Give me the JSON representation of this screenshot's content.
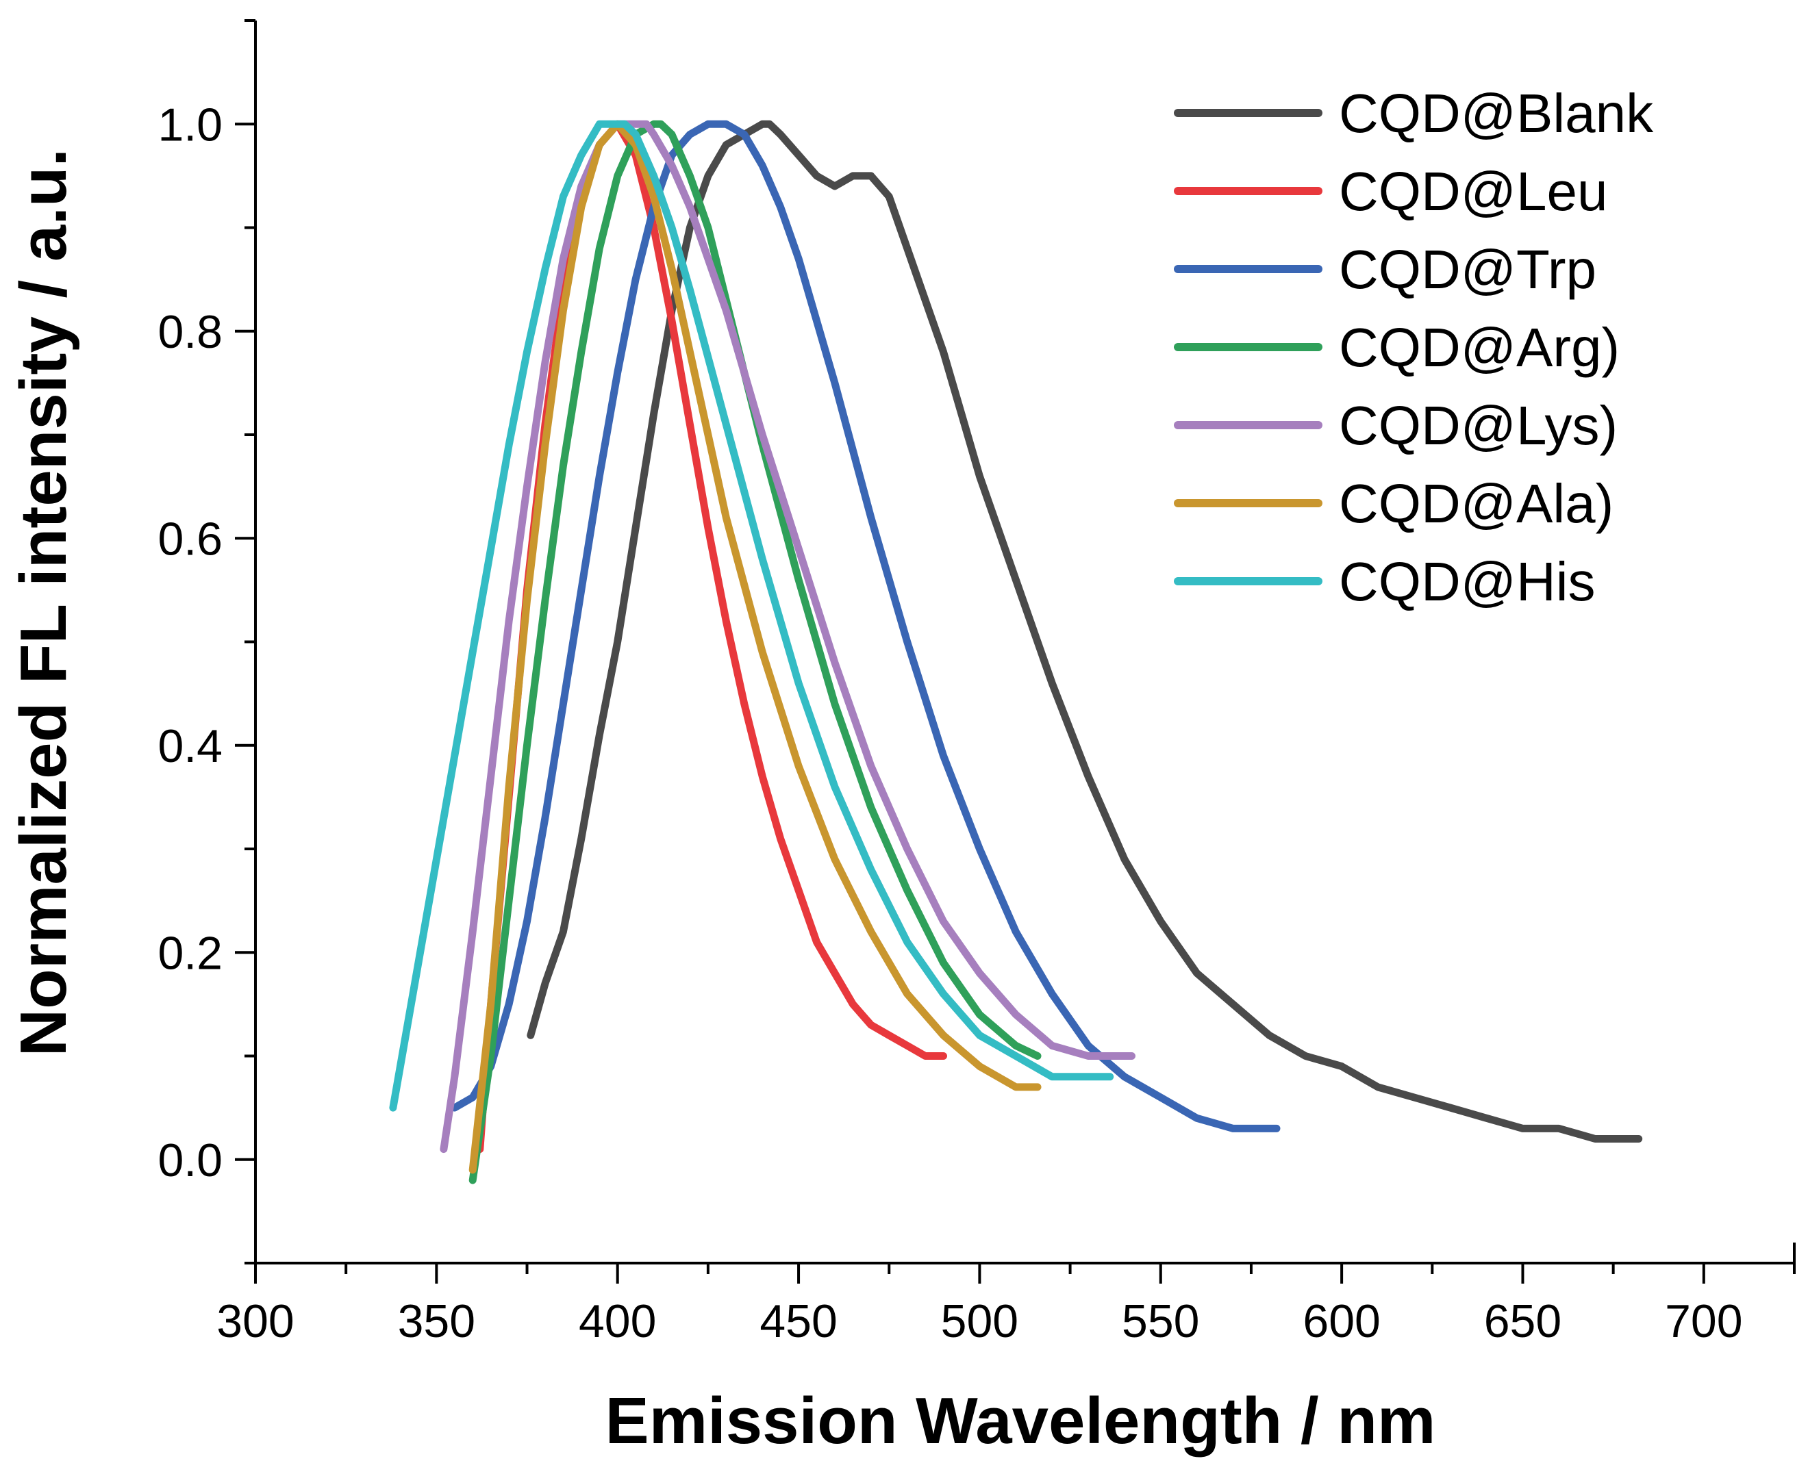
{
  "chart_data": {
    "type": "line",
    "title": "",
    "xlabel": "Emission Wavelength / nm",
    "ylabel": "Normalized FL intensity / a.u.",
    "xlim": [
      300,
      725
    ],
    "ylim": [
      -0.1,
      1.1
    ],
    "xticks": [
      300,
      350,
      400,
      450,
      500,
      550,
      600,
      650,
      700
    ],
    "xtick_labels": [
      "300",
      "350",
      "400",
      "450",
      "500",
      "550",
      "600",
      "650",
      "700"
    ],
    "yticks": [
      0.0,
      0.2,
      0.4,
      0.6,
      0.8,
      1.0
    ],
    "ytick_labels": [
      "0.0",
      "0.2",
      "0.4",
      "0.6",
      "0.8",
      "1.0"
    ],
    "grid": false,
    "legend_position": "top-right",
    "series": [
      {
        "name": "CQD@Blank",
        "color": "#4a4a4a",
        "x": [
          376,
          380,
          385,
          390,
          395,
          400,
          405,
          410,
          415,
          420,
          425,
          430,
          435,
          440,
          442,
          445,
          450,
          455,
          460,
          465,
          470,
          475,
          480,
          485,
          490,
          495,
          500,
          510,
          520,
          530,
          540,
          550,
          560,
          570,
          580,
          590,
          600,
          610,
          620,
          630,
          640,
          650,
          660,
          670,
          680,
          682
        ],
        "values": [
          0.12,
          0.17,
          0.22,
          0.31,
          0.41,
          0.5,
          0.61,
          0.72,
          0.82,
          0.9,
          0.95,
          0.98,
          0.99,
          1.0,
          1.0,
          0.99,
          0.97,
          0.95,
          0.94,
          0.95,
          0.95,
          0.93,
          0.88,
          0.83,
          0.78,
          0.72,
          0.66,
          0.56,
          0.46,
          0.37,
          0.29,
          0.23,
          0.18,
          0.15,
          0.12,
          0.1,
          0.09,
          0.07,
          0.06,
          0.05,
          0.04,
          0.03,
          0.03,
          0.02,
          0.02,
          0.02
        ]
      },
      {
        "name": "CQD@Leu",
        "color": "#e8383c",
        "x": [
          362,
          365,
          370,
          375,
          380,
          385,
          390,
          395,
          400,
          405,
          410,
          415,
          420,
          425,
          430,
          435,
          440,
          445,
          450,
          455,
          460,
          465,
          470,
          475,
          480,
          485,
          490
        ],
        "values": [
          0.01,
          0.15,
          0.35,
          0.55,
          0.71,
          0.84,
          0.93,
          0.98,
          1.0,
          0.97,
          0.9,
          0.81,
          0.71,
          0.61,
          0.52,
          0.44,
          0.37,
          0.31,
          0.26,
          0.21,
          0.18,
          0.15,
          0.13,
          0.12,
          0.11,
          0.1,
          0.1
        ]
      },
      {
        "name": "CQD@Trp",
        "color": "#3a66b4",
        "x": [
          355,
          360,
          365,
          370,
          375,
          380,
          385,
          390,
          395,
          400,
          405,
          410,
          415,
          420,
          425,
          430,
          435,
          440,
          445,
          450,
          455,
          460,
          470,
          480,
          490,
          500,
          510,
          520,
          530,
          540,
          550,
          560,
          570,
          582
        ],
        "values": [
          0.05,
          0.06,
          0.09,
          0.15,
          0.23,
          0.33,
          0.44,
          0.55,
          0.66,
          0.76,
          0.85,
          0.92,
          0.97,
          0.99,
          1.0,
          1.0,
          0.99,
          0.96,
          0.92,
          0.87,
          0.81,
          0.75,
          0.62,
          0.5,
          0.39,
          0.3,
          0.22,
          0.16,
          0.11,
          0.08,
          0.06,
          0.04,
          0.03,
          0.03
        ]
      },
      {
        "name": "CQD@Arg)",
        "color": "#2fa05a",
        "x": [
          360,
          365,
          370,
          375,
          380,
          385,
          390,
          395,
          400,
          405,
          410,
          412,
          415,
          420,
          425,
          430,
          440,
          450,
          460,
          470,
          480,
          490,
          500,
          510,
          516
        ],
        "values": [
          -0.02,
          0.1,
          0.25,
          0.4,
          0.54,
          0.67,
          0.78,
          0.88,
          0.95,
          0.99,
          1.0,
          1.0,
          0.99,
          0.95,
          0.9,
          0.83,
          0.69,
          0.56,
          0.44,
          0.34,
          0.26,
          0.19,
          0.14,
          0.11,
          0.1
        ]
      },
      {
        "name": "CQD@Lys)",
        "color": "#a67fbe",
        "x": [
          352,
          355,
          360,
          365,
          370,
          375,
          380,
          385,
          390,
          395,
          400,
          405,
          408,
          410,
          415,
          420,
          430,
          440,
          450,
          460,
          470,
          480,
          490,
          500,
          510,
          520,
          530,
          542
        ],
        "values": [
          0.01,
          0.08,
          0.22,
          0.37,
          0.52,
          0.65,
          0.77,
          0.87,
          0.94,
          0.98,
          1.0,
          1.0,
          1.0,
          0.99,
          0.96,
          0.92,
          0.82,
          0.7,
          0.59,
          0.48,
          0.38,
          0.3,
          0.23,
          0.18,
          0.14,
          0.11,
          0.1,
          0.1
        ]
      },
      {
        "name": "CQD@Ala)",
        "color": "#c9962e",
        "x": [
          360,
          365,
          370,
          375,
          380,
          385,
          390,
          395,
          400,
          405,
          410,
          415,
          420,
          425,
          430,
          440,
          450,
          460,
          470,
          480,
          490,
          500,
          510,
          516
        ],
        "values": [
          -0.01,
          0.15,
          0.36,
          0.54,
          0.69,
          0.82,
          0.92,
          0.98,
          1.0,
          0.98,
          0.93,
          0.86,
          0.78,
          0.7,
          0.62,
          0.49,
          0.38,
          0.29,
          0.22,
          0.16,
          0.12,
          0.09,
          0.07,
          0.07
        ]
      },
      {
        "name": "CQD@His",
        "color": "#34bcc4",
        "x": [
          338,
          345,
          350,
          355,
          360,
          365,
          370,
          375,
          380,
          385,
          390,
          395,
          400,
          402,
          405,
          410,
          415,
          420,
          430,
          440,
          450,
          460,
          470,
          480,
          490,
          500,
          510,
          520,
          530,
          536
        ],
        "values": [
          0.05,
          0.19,
          0.29,
          0.39,
          0.49,
          0.59,
          0.69,
          0.78,
          0.86,
          0.93,
          0.97,
          1.0,
          1.0,
          1.0,
          0.99,
          0.95,
          0.9,
          0.84,
          0.71,
          0.58,
          0.46,
          0.36,
          0.28,
          0.21,
          0.16,
          0.12,
          0.1,
          0.08,
          0.08,
          0.08
        ]
      }
    ]
  }
}
